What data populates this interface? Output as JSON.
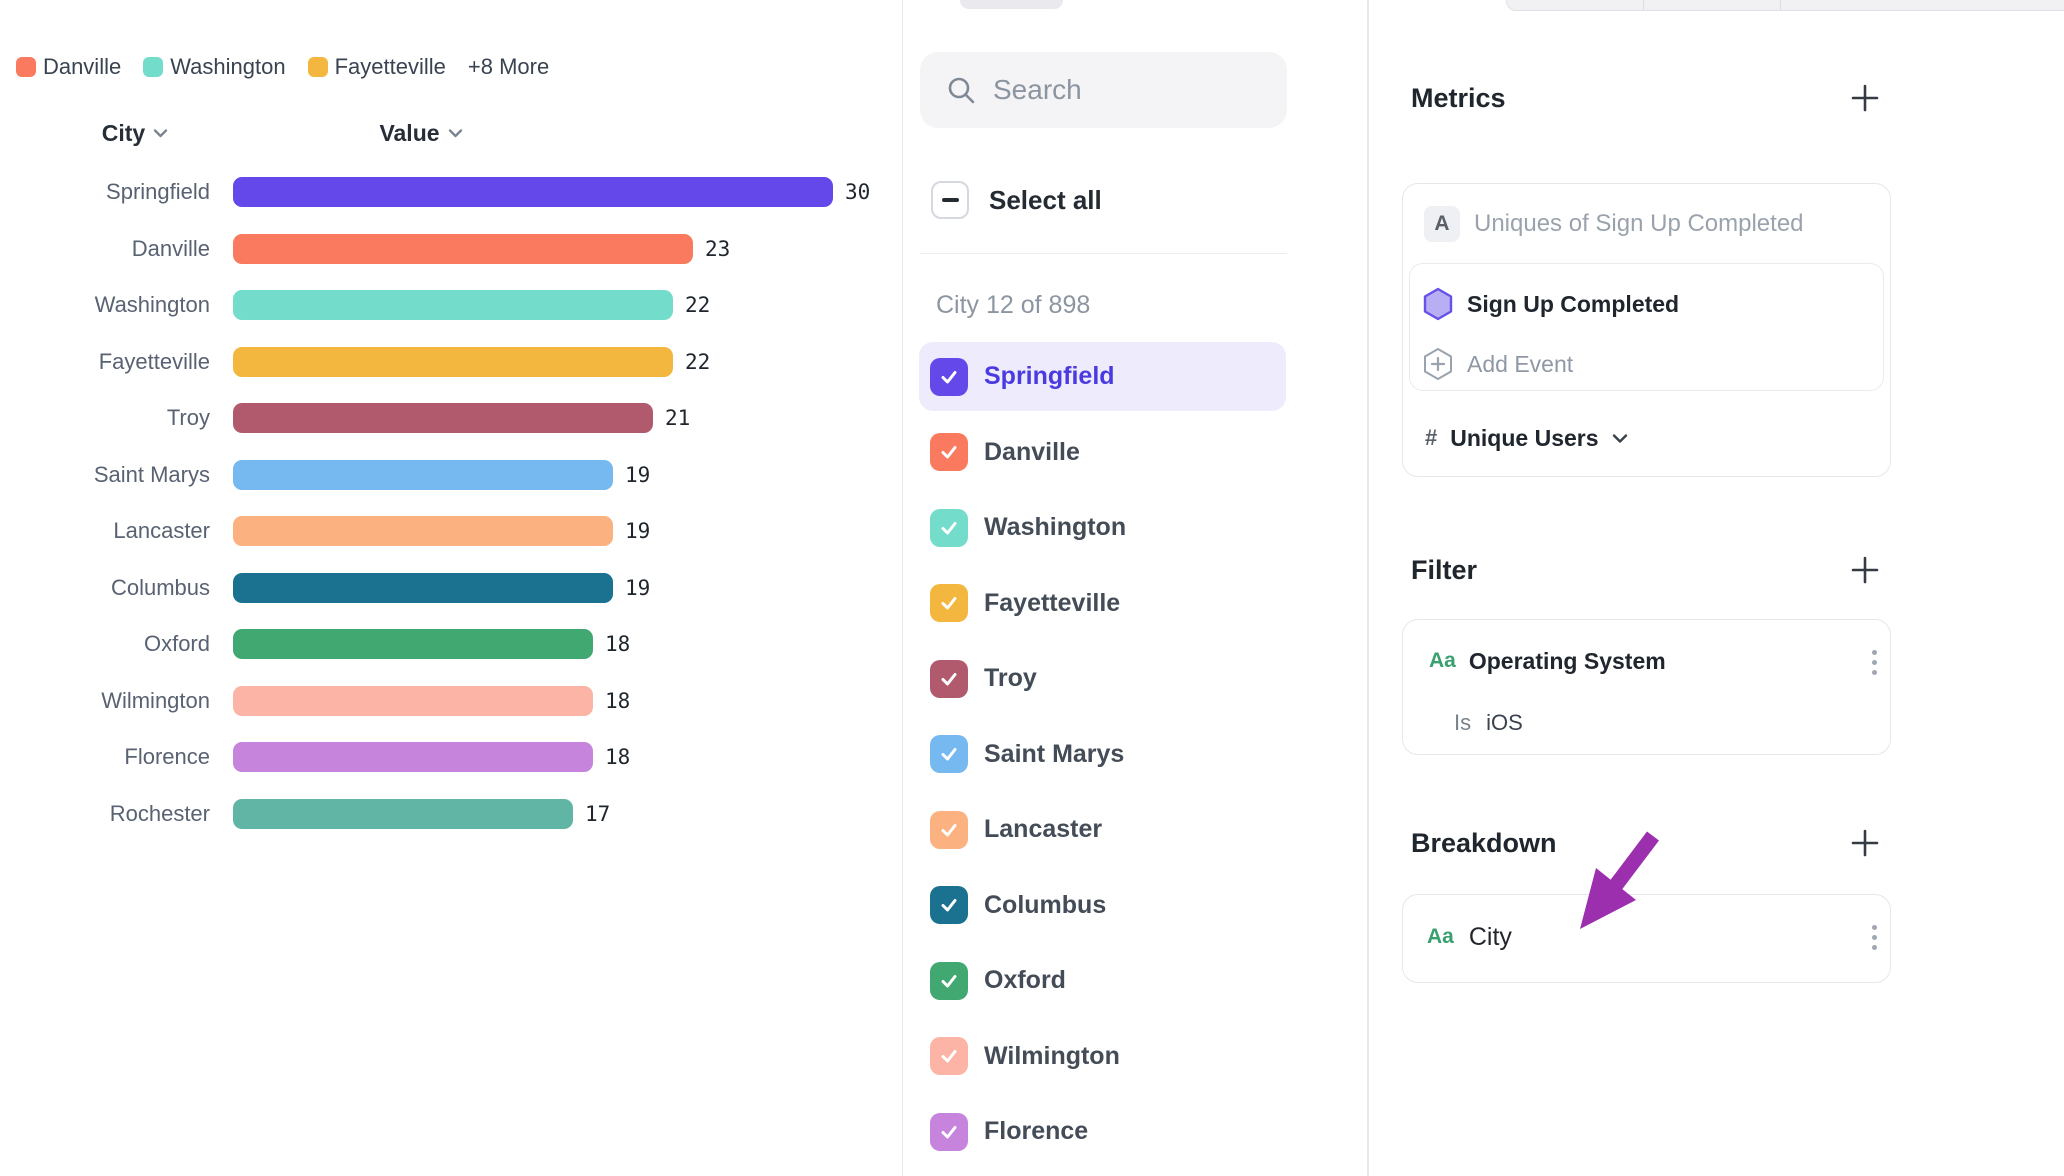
{
  "colors": {
    "accent": "#4a3be0",
    "highlight_bg": "#edebfc",
    "arrow": "#9c2fae",
    "type_badge_green": "#3aa070"
  },
  "chart_data": {
    "type": "bar",
    "orientation": "horizontal",
    "title": "",
    "xlabel": "",
    "ylabel": "",
    "xlim": [
      0,
      30
    ],
    "grid": false,
    "legend_position": "top",
    "columns": {
      "city": "City",
      "value": "Value"
    },
    "legend": [
      {
        "label": "Springfield",
        "color": "#6448e9",
        "truncated": true
      },
      {
        "label": "Danville",
        "color": "#f97a5f"
      },
      {
        "label": "Washington",
        "color": "#74dcca"
      },
      {
        "label": "Fayetteville",
        "color": "#f3b73f"
      },
      {
        "label": "+8 More",
        "color": null
      }
    ],
    "categories": [
      "Springfield",
      "Danville",
      "Washington",
      "Fayetteville",
      "Troy",
      "Saint Marys",
      "Lancaster",
      "Columbus",
      "Oxford",
      "Wilmington",
      "Florence",
      "Rochester"
    ],
    "values": [
      30,
      23,
      22,
      22,
      21,
      19,
      19,
      19,
      18,
      18,
      18,
      17
    ],
    "bar_colors": [
      "#6448e9",
      "#f97a5f",
      "#74dcca",
      "#f3b73f",
      "#b15a6e",
      "#76b8f0",
      "#fbb280",
      "#1b7190",
      "#42a872",
      "#fbb4a5",
      "#c684dc",
      "#60b5a4"
    ]
  },
  "selector": {
    "search_placeholder": "Search",
    "select_all": "Select all",
    "count_label": "City 12 of 898",
    "items": [
      {
        "label": "Springfield",
        "color": "#6448e9",
        "checked": true,
        "highlighted": true
      },
      {
        "label": "Danville",
        "color": "#f97a5f",
        "checked": true,
        "highlighted": false
      },
      {
        "label": "Washington",
        "color": "#74dcca",
        "checked": true,
        "highlighted": false
      },
      {
        "label": "Fayetteville",
        "color": "#f3b73f",
        "checked": true,
        "highlighted": false
      },
      {
        "label": "Troy",
        "color": "#b15a6e",
        "checked": true,
        "highlighted": false
      },
      {
        "label": "Saint Marys",
        "color": "#76b8f0",
        "checked": true,
        "highlighted": false
      },
      {
        "label": "Lancaster",
        "color": "#fbb280",
        "checked": true,
        "highlighted": false
      },
      {
        "label": "Columbus",
        "color": "#1b7190",
        "checked": true,
        "highlighted": false
      },
      {
        "label": "Oxford",
        "color": "#42a872",
        "checked": true,
        "highlighted": false
      },
      {
        "label": "Wilmington",
        "color": "#fbb4a5",
        "checked": true,
        "highlighted": false
      },
      {
        "label": "Florence",
        "color": "#c684dc",
        "checked": true,
        "highlighted": false
      }
    ]
  },
  "panel": {
    "metrics": {
      "title": "Metrics",
      "badge": "A",
      "metric_label": "Uniques of Sign Up Completed",
      "event": "Sign Up Completed",
      "add_event": "Add Event",
      "measure_prefix": "#",
      "measure": "Unique Users"
    },
    "filter": {
      "title": "Filter",
      "type_badge": "Aa",
      "property": "Operating System",
      "operator": "Is",
      "value": "iOS"
    },
    "breakdown": {
      "title": "Breakdown",
      "type_badge": "Aa",
      "property": "City"
    }
  }
}
